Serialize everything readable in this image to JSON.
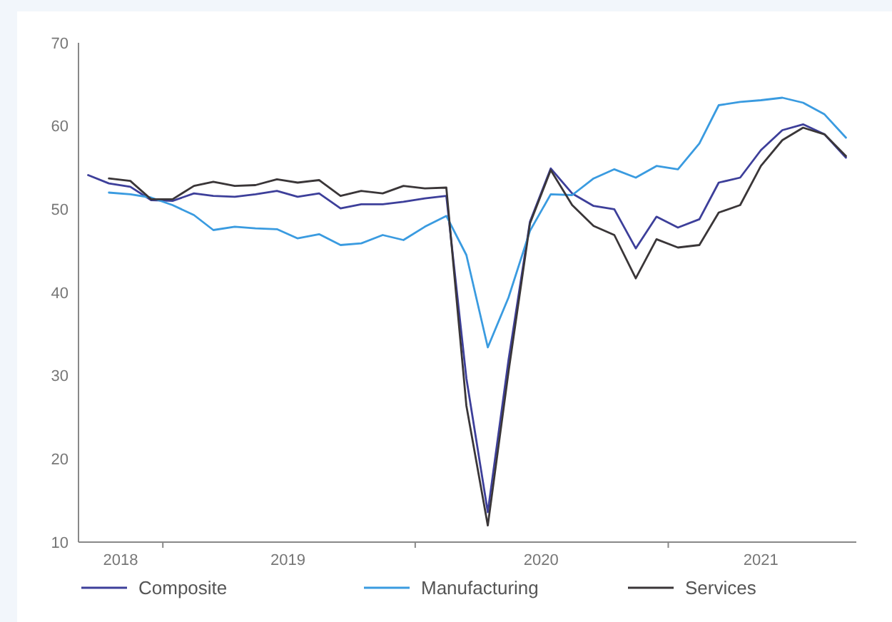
{
  "chart_data": {
    "type": "line",
    "ylim": [
      10,
      70
    ],
    "yticks": [
      10,
      20,
      30,
      40,
      50,
      60,
      70
    ],
    "xlim": [
      "2018-09-01",
      "2021-09-30"
    ],
    "xticks": [
      {
        "value": "2018-11-01",
        "label": "2018"
      },
      {
        "value": "2019-01-01",
        "label": null
      },
      {
        "value": "2019-07-01",
        "label": "2019"
      },
      {
        "value": "2020-01-01",
        "label": null
      },
      {
        "value": "2020-07-01",
        "label": "2020"
      },
      {
        "value": "2021-01-01",
        "label": null
      },
      {
        "value": "2021-05-15",
        "label": "2021"
      }
    ],
    "grid": false,
    "legend": "bottom",
    "marker": "none",
    "line_style": "solid",
    "series": [
      {
        "name": "Composite",
        "color": "#3d3f9a",
        "x": [
          "2018-09-15",
          "2018-10-15",
          "2018-11-15",
          "2018-12-15",
          "2019-01-15",
          "2019-02-15",
          "2019-03-15",
          "2019-04-15",
          "2019-05-15",
          "2019-06-15",
          "2019-07-15",
          "2019-08-15",
          "2019-09-15",
          "2019-10-15",
          "2019-11-15",
          "2019-12-15",
          "2020-01-15",
          "2020-02-15",
          "2020-03-15",
          "2020-04-15",
          "2020-05-15",
          "2020-06-15",
          "2020-07-15",
          "2020-08-15",
          "2020-09-15",
          "2020-10-15",
          "2020-11-15",
          "2020-12-15",
          "2021-01-15",
          "2021-02-15",
          "2021-03-15",
          "2021-04-15",
          "2021-05-15",
          "2021-06-15",
          "2021-07-15",
          "2021-08-15",
          "2021-09-15"
        ],
        "values": [
          54.1,
          53.1,
          52.7,
          51.1,
          51.0,
          51.9,
          51.6,
          51.5,
          51.8,
          52.2,
          51.5,
          51.9,
          50.1,
          50.6,
          50.6,
          50.9,
          51.3,
          51.6,
          29.7,
          13.6,
          31.9,
          48.5,
          54.9,
          51.9,
          50.4,
          50.0,
          45.3,
          49.1,
          47.8,
          48.8,
          53.2,
          53.8,
          57.1,
          59.5,
          60.2,
          59.0,
          56.2
        ]
      },
      {
        "name": "Manufacturing",
        "color": "#3a9be0",
        "x": [
          "2018-10-15",
          "2018-11-15",
          "2018-12-15",
          "2019-01-15",
          "2019-02-15",
          "2019-03-15",
          "2019-04-15",
          "2019-05-15",
          "2019-06-15",
          "2019-07-15",
          "2019-08-15",
          "2019-09-15",
          "2019-10-15",
          "2019-11-15",
          "2019-12-15",
          "2020-01-15",
          "2020-02-15",
          "2020-03-15",
          "2020-04-15",
          "2020-05-15",
          "2020-06-15",
          "2020-07-15",
          "2020-08-15",
          "2020-09-15",
          "2020-10-15",
          "2020-11-15",
          "2020-12-15",
          "2021-01-15",
          "2021-02-15",
          "2021-03-15",
          "2021-04-15",
          "2021-05-15",
          "2021-06-15",
          "2021-07-15",
          "2021-08-15",
          "2021-09-15"
        ],
        "values": [
          52.0,
          51.8,
          51.4,
          50.5,
          49.3,
          47.5,
          47.9,
          47.7,
          47.6,
          46.5,
          47.0,
          45.7,
          45.9,
          46.9,
          46.3,
          47.9,
          49.2,
          44.5,
          33.4,
          39.4,
          47.4,
          51.8,
          51.7,
          53.7,
          54.8,
          53.8,
          55.2,
          54.8,
          57.9,
          62.5,
          62.9,
          63.1,
          63.4,
          62.8,
          61.4,
          58.6
        ]
      },
      {
        "name": "Services",
        "color": "#3a3638",
        "x": [
          "2018-10-15",
          "2018-11-15",
          "2018-12-15",
          "2019-01-15",
          "2019-02-15",
          "2019-03-15",
          "2019-04-15",
          "2019-05-15",
          "2019-06-15",
          "2019-07-15",
          "2019-08-15",
          "2019-09-15",
          "2019-10-15",
          "2019-11-15",
          "2019-12-15",
          "2020-01-15",
          "2020-02-15",
          "2020-03-15",
          "2020-04-15",
          "2020-05-15",
          "2020-06-15",
          "2020-07-15",
          "2020-08-15",
          "2020-09-15",
          "2020-10-15",
          "2020-11-15",
          "2020-12-15",
          "2021-01-15",
          "2021-02-15",
          "2021-03-15",
          "2021-04-15",
          "2021-05-15",
          "2021-06-15",
          "2021-07-15",
          "2021-08-15",
          "2021-09-15"
        ],
        "values": [
          53.7,
          53.4,
          51.2,
          51.2,
          52.8,
          53.3,
          52.8,
          52.9,
          53.6,
          53.2,
          53.5,
          51.6,
          52.2,
          51.9,
          52.8,
          52.5,
          52.6,
          26.4,
          12.0,
          30.5,
          48.3,
          54.7,
          50.5,
          48.0,
          46.9,
          41.7,
          46.4,
          45.4,
          45.7,
          49.6,
          50.5,
          55.2,
          58.3,
          59.8,
          59.0,
          56.4
        ]
      }
    ]
  }
}
